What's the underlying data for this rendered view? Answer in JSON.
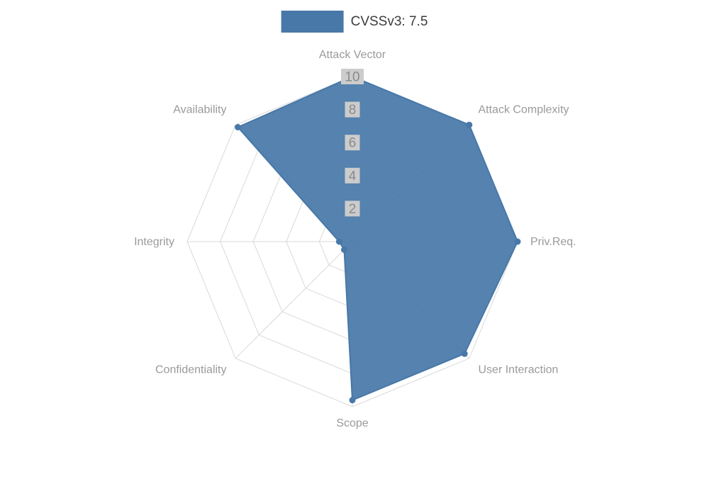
{
  "legend": {
    "label": "CVSSv3: 7.5"
  },
  "chart_data": {
    "type": "radar",
    "title": "CVSSv3: 7.5",
    "categories": [
      "Attack Vector",
      "Attack Complexity",
      "Priv.Req.",
      "User Interaction",
      "Scope",
      "Confidentiality",
      "Integrity",
      "Availability"
    ],
    "series": [
      {
        "name": "CVSSv3: 7.5",
        "values": [
          10,
          10,
          10,
          9.6,
          9.6,
          0.7,
          0.8,
          9.8
        ]
      }
    ],
    "ticks": [
      2,
      4,
      6,
      8,
      10
    ],
    "rlim": [
      0,
      10
    ],
    "grid": true,
    "legend_position": "top",
    "colors": {
      "fill": "#4878a8",
      "stroke": "#4878a8",
      "grid": "#d9d9d9",
      "tick_text": "#8a8a8a",
      "tick_backdrop": "#cccccc",
      "axis_label": "#9a9a9a",
      "legend_text": "#3c3c3c"
    }
  }
}
